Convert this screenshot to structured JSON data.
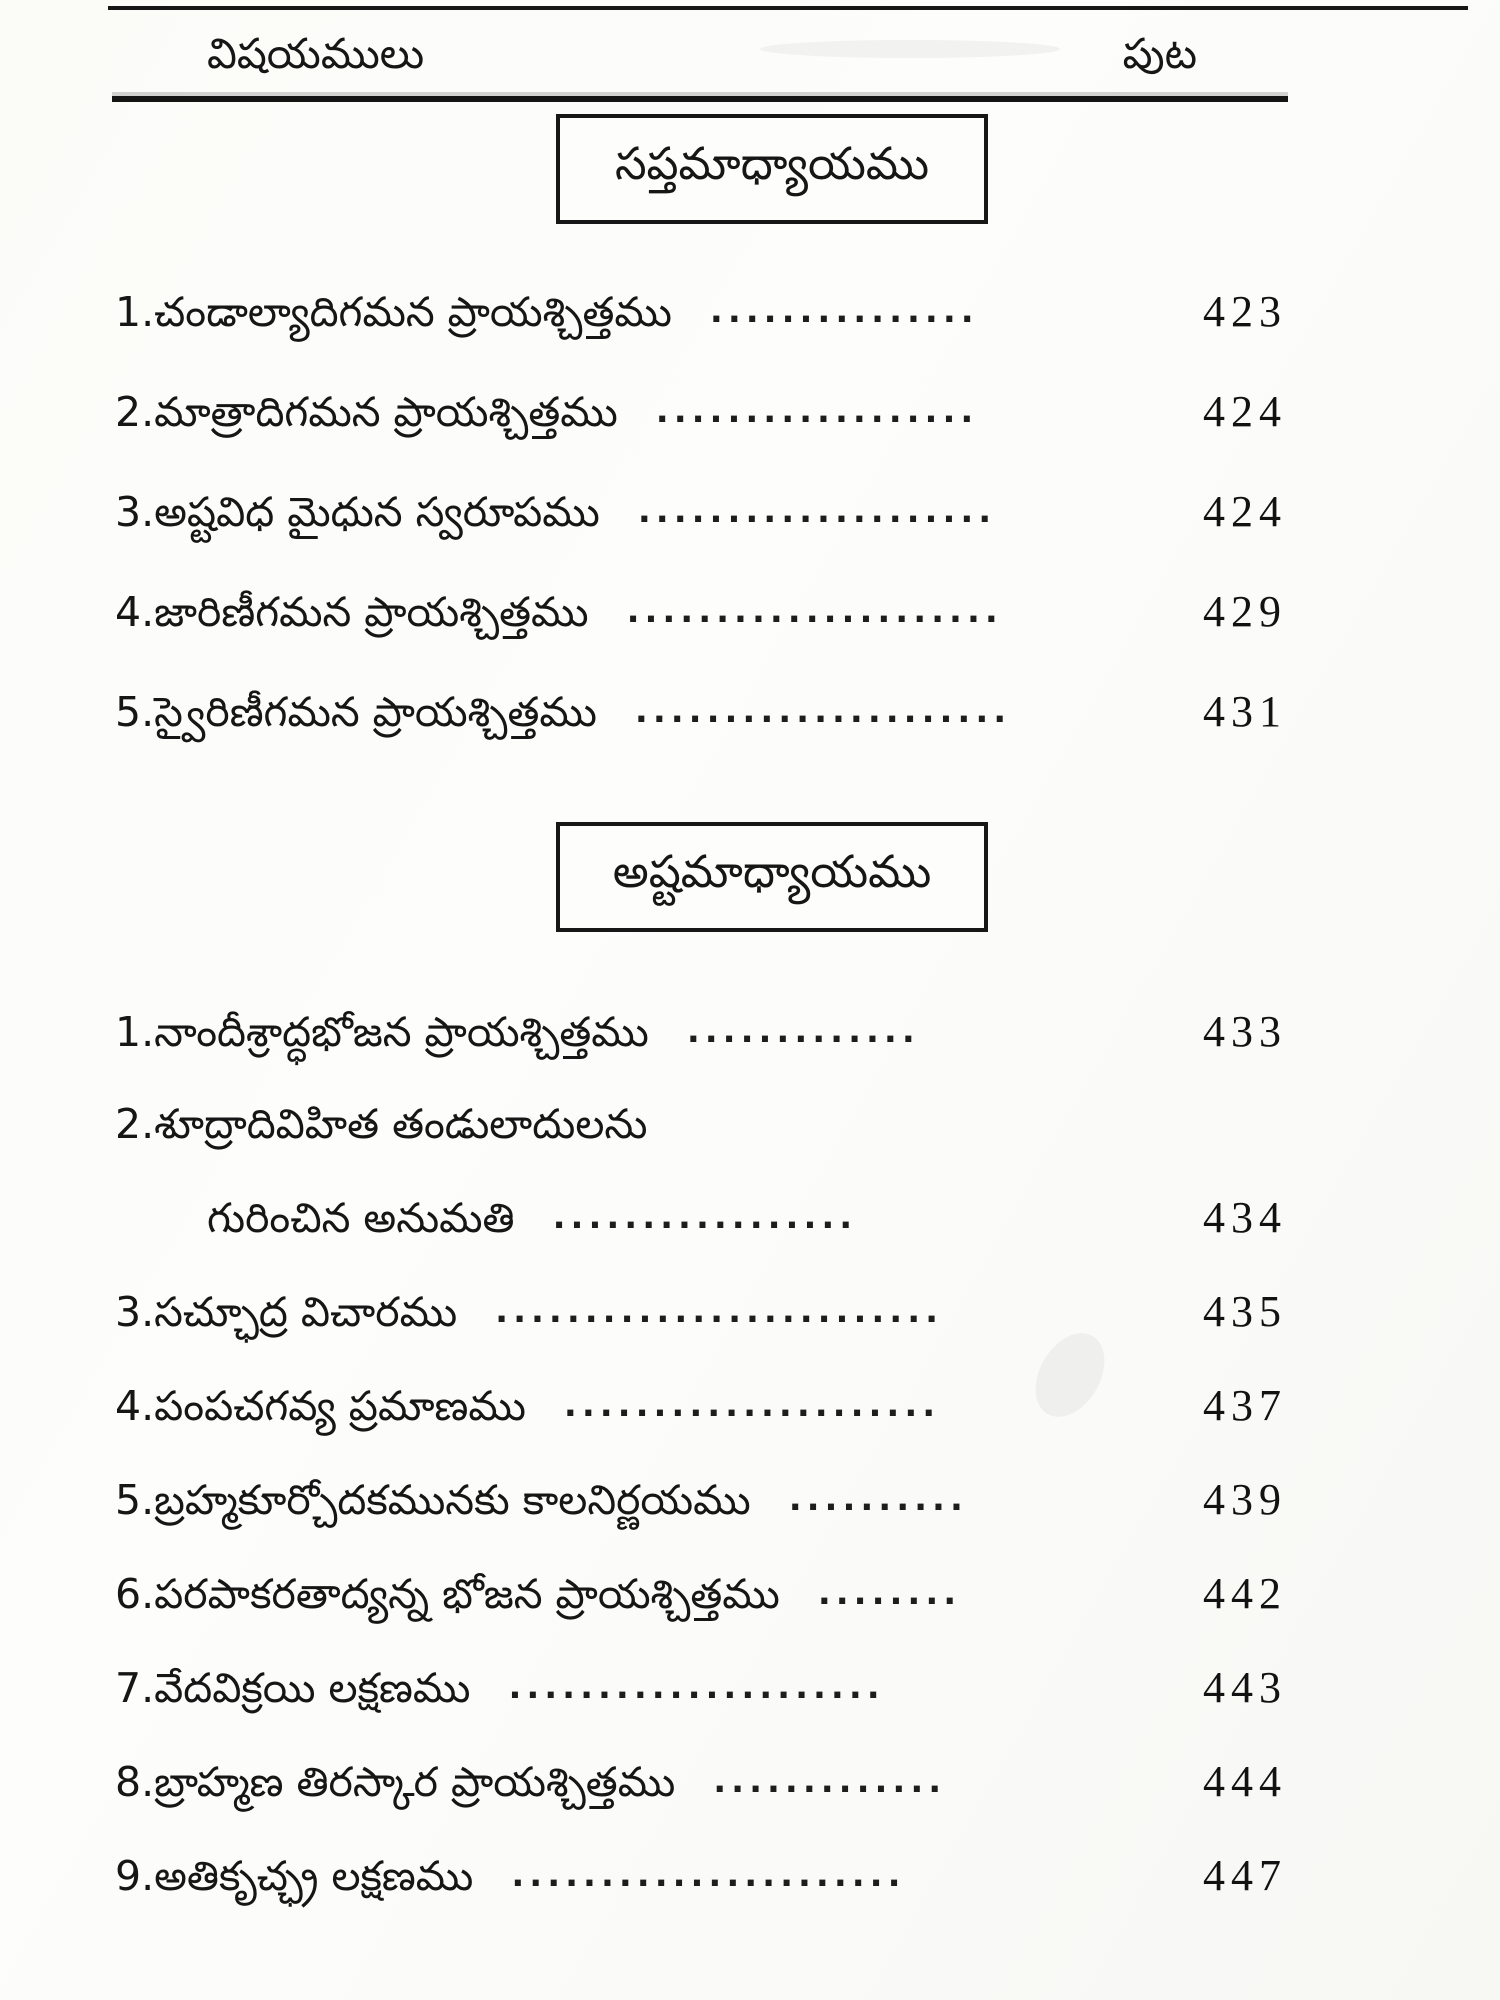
{
  "page": {
    "header": {
      "left": "విషయములు",
      "right": "పుట"
    },
    "sections": [
      {
        "heading": "సప్తమాధ్యాయము",
        "items": [
          {
            "num": "1.",
            "title": "చండాల్యాదిగమన ప్రాయశ్చిత్తము",
            "dots": "...............",
            "page": "423"
          },
          {
            "num": "2.",
            "title": "మాత్రాదిగమన ప్రాయశ్చిత్తము",
            "dots": "..................",
            "page": "424"
          },
          {
            "num": "3.",
            "title": "అష్టవిధ మైధున స్వరూపము",
            "dots": "....................",
            "page": "424"
          },
          {
            "num": "4.",
            "title": "జారిణీగమన ప్రాయశ్చిత్తము",
            "dots": ".....................",
            "page": "429"
          },
          {
            "num": "5.",
            "title": "స్వైరిణీగమన ప్రాయశ్చిత్తము",
            "dots": ".....................",
            "page": "431"
          }
        ]
      },
      {
        "heading": "అష్టమాధ్యాయము",
        "items": [
          {
            "num": "1.",
            "title": "నాందీశ్రాద్ధభోజన ప్రాయశ్చిత్తము",
            "dots": ".............",
            "page": "433"
          },
          {
            "num": "2.",
            "title": "శూద్రాదివిహిత తండులాదులను",
            "dots": "",
            "page": ""
          },
          {
            "num": "",
            "title": "గురించిన అనుమతి",
            "dots": ".................",
            "page": "434"
          },
          {
            "num": "3.",
            "title": "సచ్ఛూద్ర విచారము",
            "dots": ".........................",
            "page": "435"
          },
          {
            "num": "4.",
            "title": "పంపచగవ్య ప్రమాణము",
            "dots": ".....................",
            "page": "437"
          },
          {
            "num": "5.",
            "title": "బ్రహ్మకూర్చోదకమునకు కాలనిర్ణయము",
            "dots": "..........",
            "page": "439"
          },
          {
            "num": "6.",
            "title": "పరపాకరతాద్యన్న భోజన ప్రాయశ్చిత్తము",
            "dots": "........",
            "page": "442"
          },
          {
            "num": "7.",
            "title": "వేదవిక్రయి లక్షణము",
            "dots": ".....................",
            "page": "443"
          },
          {
            "num": "8.",
            "title": "బ్రాహ్మణ తిరస్కార ప్రాయశ్చిత్తము",
            "dots": ".............",
            "page": "444"
          },
          {
            "num": "9.",
            "title": "అతికృచ్ఛ్ర లక్షణము",
            "dots": "......................",
            "page": "447"
          }
        ]
      }
    ]
  }
}
